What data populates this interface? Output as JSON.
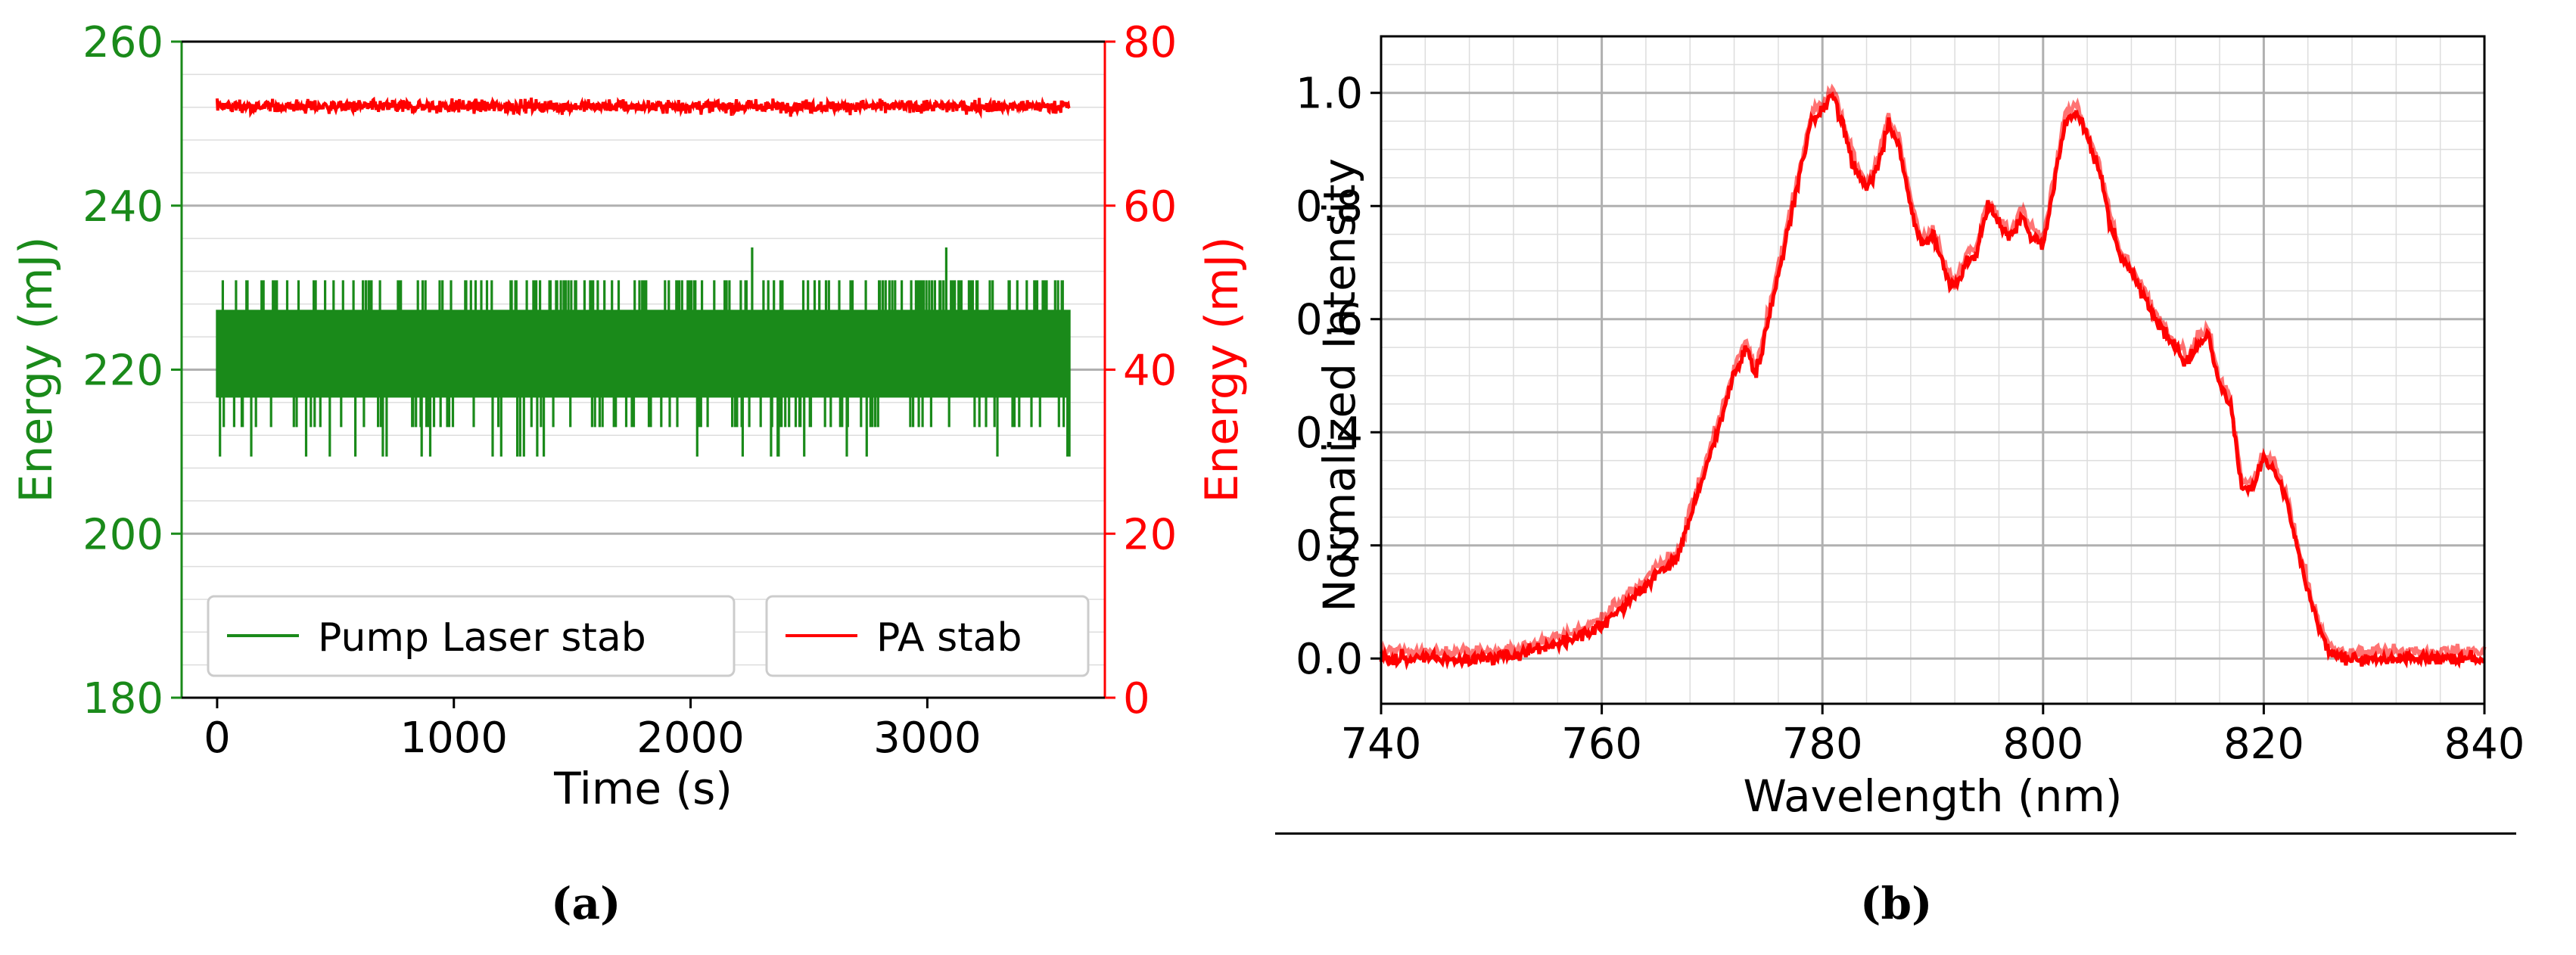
{
  "colors": {
    "green": "#1a8a1a",
    "red": "#ff0000",
    "grid": "#b0b0b0",
    "minorgrid": "#dddddd",
    "axis": "#000000"
  },
  "panels": {
    "a": "(a)",
    "b": "(b)"
  },
  "chart_data": [
    {
      "id": "a",
      "type": "line",
      "xlabel": "Time (s)",
      "ylabel": "Energy (mJ)",
      "y2label": "Energy (mJ)",
      "xlim": [
        -150,
        3750
      ],
      "ylim": [
        180,
        260
      ],
      "y2lim": [
        0,
        80
      ],
      "xticks": [
        "0",
        "1000",
        "2000",
        "3000"
      ],
      "yticks": [
        "180",
        "200",
        "220",
        "240",
        "260"
      ],
      "y2ticks": [
        "0",
        "20",
        "40",
        "60",
        "80"
      ],
      "grid": true,
      "legend_position": "bottom",
      "series": [
        {
          "name": "Pump Laser stab",
          "axis": "left",
          "color": "#1a8a1a",
          "x_range": [
            0,
            3600
          ],
          "levels": [
            209.4,
            213.0,
            216.6,
            220.1,
            223.7,
            227.3,
            230.9,
            234.9
          ],
          "typical_range": [
            216.6,
            227.3
          ],
          "max": 234.9,
          "min": 209.4
        },
        {
          "name": "PA stab",
          "axis": "right",
          "color": "#ff0000",
          "x_range": [
            0,
            3600
          ],
          "mean": 72.1,
          "range": [
            69.6,
            74.0
          ]
        }
      ]
    },
    {
      "id": "b",
      "type": "line",
      "xlabel": "Wavelength (nm)",
      "ylabel": "Normalized Intensity",
      "xlim": [
        740,
        840
      ],
      "ylim": [
        -0.08,
        1.1
      ],
      "xticks": [
        "740",
        "760",
        "780",
        "800",
        "820",
        "840"
      ],
      "yticks": [
        "0.0",
        "0.2",
        "0.4",
        "0.6",
        "0.8",
        "1.0"
      ],
      "grid": true,
      "minor_grid": true,
      "series": [
        {
          "color": "#ff0000",
          "x": [
            740,
            745,
            750,
            752,
            755,
            758,
            760,
            763,
            765,
            767,
            768,
            770,
            772,
            773,
            774,
            776,
            778,
            779,
            780,
            781,
            782,
            783,
            784,
            785,
            786,
            787,
            788,
            789,
            790,
            791,
            792,
            793,
            794,
            795,
            796,
            797,
            798,
            799,
            800,
            801,
            802,
            803,
            804,
            805,
            806,
            807,
            808,
            809,
            810,
            811,
            812,
            813,
            814,
            815,
            816,
            817,
            818,
            819,
            820,
            821,
            822,
            823,
            824,
            825,
            826,
            827,
            830,
            835,
            840
          ],
          "y": [
            0.0,
            0.0,
            0.0,
            0.005,
            0.02,
            0.04,
            0.06,
            0.11,
            0.15,
            0.18,
            0.25,
            0.37,
            0.5,
            0.55,
            0.5,
            0.68,
            0.86,
            0.95,
            0.97,
            1.0,
            0.93,
            0.86,
            0.83,
            0.87,
            0.95,
            0.9,
            0.8,
            0.73,
            0.75,
            0.69,
            0.65,
            0.7,
            0.72,
            0.8,
            0.77,
            0.74,
            0.78,
            0.75,
            0.73,
            0.84,
            0.95,
            0.97,
            0.92,
            0.87,
            0.78,
            0.71,
            0.68,
            0.65,
            0.6,
            0.58,
            0.55,
            0.52,
            0.56,
            0.57,
            0.48,
            0.45,
            0.3,
            0.3,
            0.35,
            0.33,
            0.28,
            0.2,
            0.12,
            0.05,
            0.01,
            0.0,
            0.0,
            0.0,
            0.0
          ]
        }
      ]
    }
  ]
}
